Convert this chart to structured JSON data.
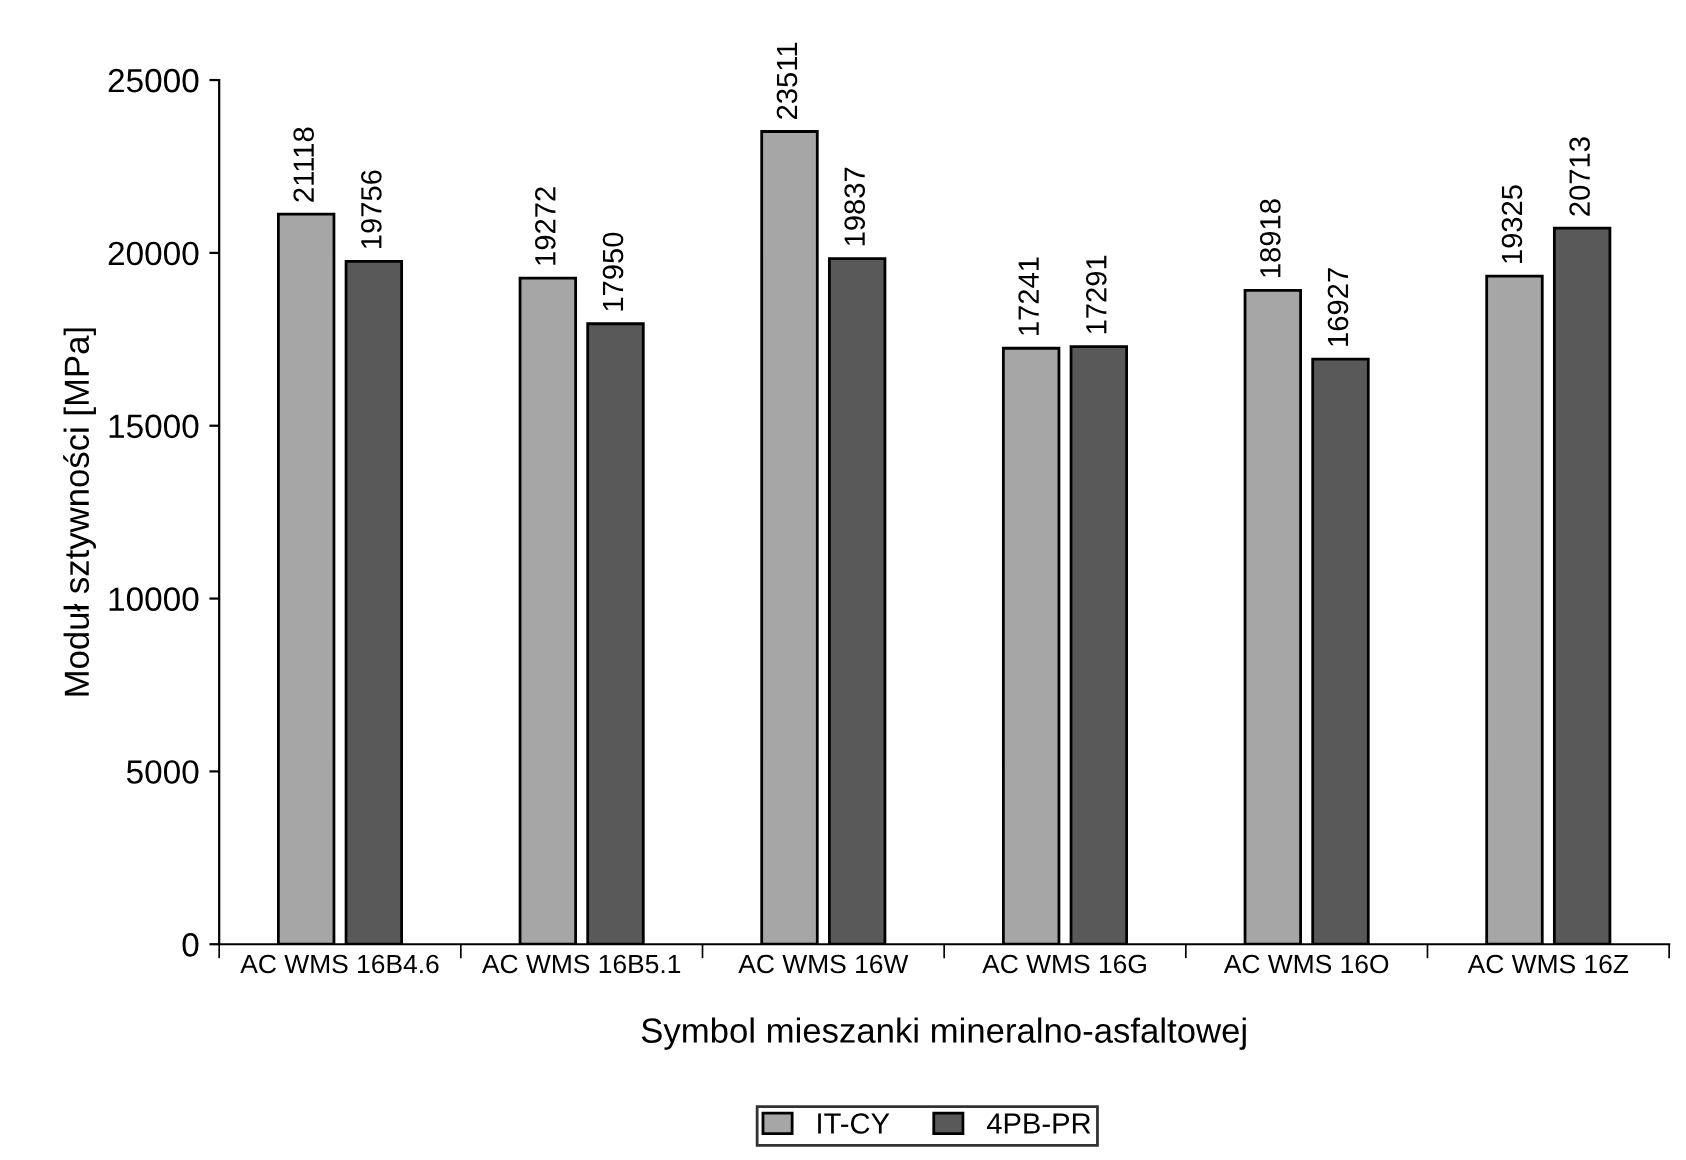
{
  "chart_data": {
    "type": "bar",
    "xlabel": "Symbol mieszanki mineralno-asfaltowej",
    "ylabel": "Moduł sztywności [MPa]",
    "categories": [
      "AC WMS 16B4.6",
      "AC WMS 16B5.1",
      "AC WMS 16W",
      "AC WMS 16G",
      "AC WMS 16O",
      "AC WMS 16Z"
    ],
    "series": [
      {
        "name": "IT-CY",
        "color": "#a6a6a6",
        "values": [
          21118,
          19272,
          23511,
          17241,
          18918,
          19325
        ]
      },
      {
        "name": "4PB-PR",
        "color": "#595959",
        "values": [
          19756,
          17950,
          19837,
          17291,
          16927,
          20713
        ]
      }
    ],
    "ylim": [
      0,
      25000
    ],
    "yticks": [
      0,
      5000,
      10000,
      15000,
      20000,
      25000
    ],
    "data_labels": true,
    "grid": false,
    "legend": "bottom"
  }
}
